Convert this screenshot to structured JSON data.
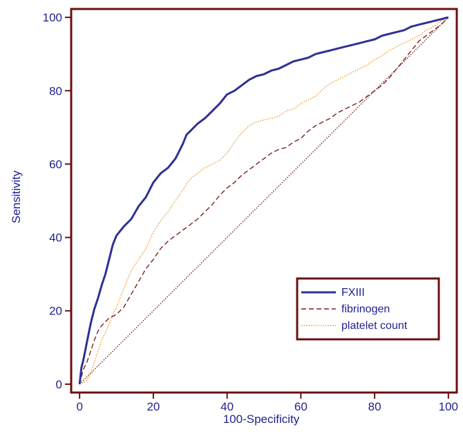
{
  "chart_data": {
    "type": "line",
    "xlabel": "100-Specificity",
    "ylabel": "Sensitivity",
    "xlim": [
      -2,
      102
    ],
    "ylim": [
      -2,
      102
    ],
    "xticks": [
      0,
      20,
      40,
      60,
      80,
      100
    ],
    "yticks": [
      0,
      20,
      40,
      60,
      80,
      100
    ],
    "grid": false,
    "legend_position": "bottom-right",
    "series": [
      {
        "name": "FXIII",
        "color": "#2e3192",
        "style": "solid",
        "x": [
          0,
          0.5,
          1,
          1.5,
          2,
          2.5,
          3,
          4,
          5,
          6,
          7,
          8,
          9,
          10,
          12,
          14,
          16,
          18,
          20,
          22,
          24,
          26,
          27,
          28,
          29,
          30,
          32,
          34,
          36,
          38,
          40,
          42,
          44,
          46,
          48,
          50,
          52,
          54,
          56,
          58,
          60,
          62,
          64,
          66,
          68,
          70,
          72,
          74,
          76,
          78,
          80,
          82,
          84,
          86,
          88,
          90,
          92,
          94,
          96,
          98,
          100
        ],
        "y": [
          0,
          4.5,
          6.5,
          9,
          11.5,
          14,
          16.5,
          20.5,
          23.5,
          27,
          30,
          34,
          38,
          40.5,
          43,
          45,
          48.5,
          51,
          55,
          57.5,
          59,
          61.5,
          63.5,
          65.5,
          68,
          69,
          71,
          72.5,
          74.5,
          76.5,
          79,
          80,
          81.5,
          83,
          84,
          84.5,
          85.5,
          86,
          87,
          88,
          88.5,
          89,
          90,
          90.5,
          91,
          91.5,
          92,
          92.5,
          93,
          93.5,
          94,
          95,
          95.5,
          96,
          96.5,
          97.5,
          98,
          98.5,
          99,
          99.5,
          100
        ]
      },
      {
        "name": "fibrinogen",
        "color": "#7a1f1f",
        "style": "dashed",
        "x": [
          0,
          1,
          2,
          3,
          4,
          5,
          6,
          7,
          8,
          9,
          10,
          12,
          14,
          16,
          18,
          20,
          22,
          24,
          26,
          28,
          30,
          32,
          34,
          36,
          38,
          40,
          42,
          44,
          46,
          48,
          50,
          52,
          54,
          56,
          58,
          60,
          62,
          64,
          66,
          68,
          70,
          72,
          74,
          76,
          78,
          80,
          82,
          84,
          86,
          88,
          90,
          92,
          94,
          96,
          98,
          100
        ],
        "y": [
          0,
          4,
          6,
          9,
          12,
          14.5,
          16,
          17,
          18,
          18.5,
          19,
          21,
          24.5,
          28,
          31.5,
          34,
          37,
          39,
          40.5,
          42,
          43.5,
          45,
          47,
          49,
          51.5,
          53.5,
          55,
          57,
          58.5,
          60,
          61.5,
          63,
          64,
          64.5,
          66,
          67,
          69,
          70.5,
          71.5,
          72.5,
          74,
          75,
          76,
          77,
          78.5,
          80,
          81.5,
          83.5,
          86,
          88.5,
          91,
          93.5,
          95,
          96.5,
          98,
          100
        ]
      },
      {
        "name": "platelet count",
        "color": "#f7941d",
        "style": "dotted",
        "x": [
          0,
          1,
          2,
          3,
          4,
          5,
          6,
          7,
          8,
          9,
          10,
          12,
          14,
          16,
          18,
          20,
          22,
          24,
          26,
          28,
          30,
          32,
          34,
          36,
          38,
          40,
          42,
          44,
          46,
          48,
          50,
          52,
          54,
          56,
          58,
          60,
          62,
          64,
          66,
          68,
          70,
          72,
          74,
          76,
          78,
          80,
          82,
          84,
          86,
          88,
          90,
          92,
          94,
          96,
          98,
          100
        ],
        "y": [
          0,
          0.5,
          1,
          3,
          6,
          9,
          12,
          14,
          16.5,
          19,
          21,
          26,
          31,
          34,
          37,
          41.5,
          44.5,
          47,
          50,
          53,
          56,
          57.5,
          59,
          60,
          61,
          63,
          66,
          68.5,
          70.5,
          71.5,
          72,
          72.5,
          73,
          74.5,
          75,
          76.5,
          77.5,
          78.5,
          80.5,
          82,
          83,
          84,
          85,
          86,
          87,
          88.5,
          89.5,
          91,
          92,
          93,
          94,
          95,
          96.5,
          97.5,
          99,
          100
        ]
      },
      {
        "name": "",
        "color": "#7a1f1f",
        "style": "dotted",
        "x": [
          0,
          100
        ],
        "y": [
          0,
          100
        ]
      }
    ]
  }
}
